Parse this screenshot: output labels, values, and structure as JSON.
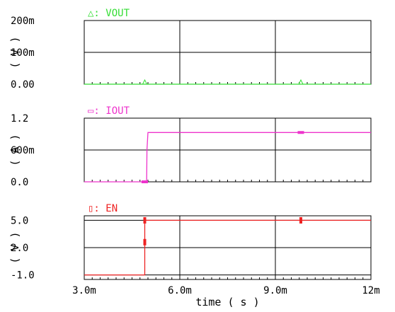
{
  "chart_data": {
    "type": "line",
    "xaxis": {
      "label": "time ( s )",
      "range": [
        0.003,
        0.012
      ],
      "ticks": [
        0.003,
        0.006,
        0.009,
        0.012
      ],
      "tick_labels": [
        "3.0m",
        "6.0m",
        "9.0m",
        "12m"
      ]
    },
    "grid": true,
    "panels": [
      {
        "series_name": "VOUT",
        "legend": "△: VOUT",
        "marker": "triangle",
        "color": "#33dd33",
        "ylabel": "( V )",
        "yrange": [
          0,
          0.2
        ],
        "yticks": [
          0,
          0.1,
          0.2
        ],
        "ytick_labels": [
          "0.00",
          "100m",
          "200m"
        ],
        "points": [
          [
            0.003,
            0
          ],
          [
            0.012,
            0
          ]
        ],
        "marker_x": [
          0.0049,
          0.0098
        ]
      },
      {
        "series_name": "IOUT",
        "legend": "▭: IOUT",
        "marker": "rect",
        "color": "#ee33cc",
        "ylabel": "( A )",
        "yrange": [
          0,
          1.2
        ],
        "yticks": [
          0,
          0.6,
          1.2
        ],
        "ytick_labels": [
          "0.0",
          "600m",
          "1.2"
        ],
        "points": [
          [
            0.003,
            0
          ],
          [
            0.00495,
            0
          ],
          [
            0.00496,
            0.05
          ],
          [
            0.00497,
            0.6
          ],
          [
            0.005,
            0.93
          ],
          [
            0.012,
            0.93
          ]
        ],
        "marker_x": [
          0.0049,
          0.0098
        ]
      },
      {
        "series_name": "EN",
        "legend": "▯: EN",
        "marker": "rect-v",
        "color": "#ee2222",
        "ylabel": "( V )",
        "yrange": [
          -1.5,
          5.5
        ],
        "yticks": [
          -1,
          2,
          5
        ],
        "ytick_labels": [
          "-1.0",
          "2.0",
          "5.0"
        ],
        "points": [
          [
            0.003,
            -1
          ],
          [
            0.0049,
            -1
          ],
          [
            0.0049,
            5
          ],
          [
            0.012,
            5
          ]
        ],
        "marker_points": [
          [
            0.0049,
            5
          ],
          [
            0.0049,
            2.6
          ],
          [
            0.0098,
            5
          ]
        ]
      }
    ]
  }
}
